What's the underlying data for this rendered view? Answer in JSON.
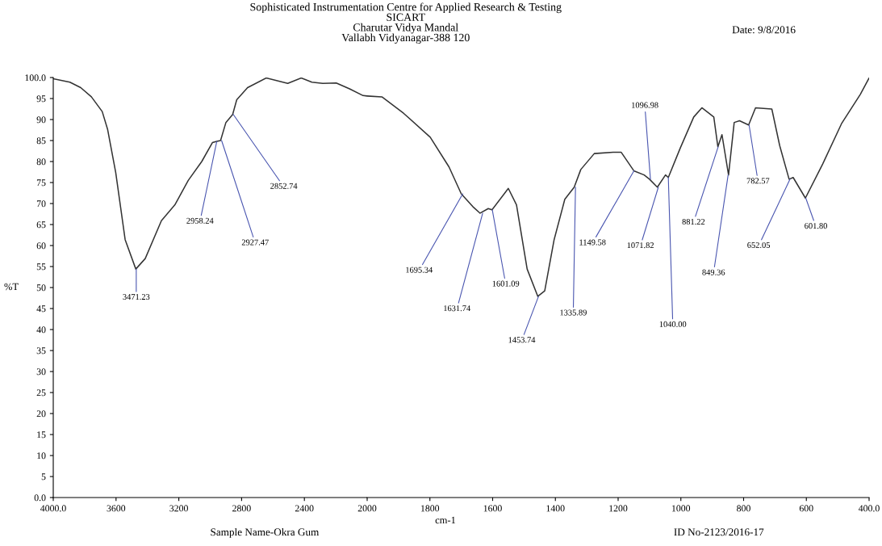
{
  "chart_data": [
    {
      "type": "line",
      "title": "Sophisticated Instrumentation Centre for Applied Research & Testing\nSICART\nCharutar Vidya Mandal\nVallabh Vidyanagar-388 120",
      "ylabel": "%T",
      "grid": false,
      "marker": "none",
      "line_style": "solid",
      "xlim": [
        4000,
        2000
      ],
      "xticks": [
        {
          "value": 4000,
          "label": "4000.0"
        },
        3600,
        3200,
        2800,
        2400
      ],
      "ylim": [
        0,
        100
      ],
      "yticks": [
        {
          "value": 0,
          "label": "0.0"
        },
        5,
        10,
        15,
        20,
        25,
        30,
        35,
        40,
        45,
        50,
        55,
        60,
        65,
        70,
        75,
        80,
        85,
        90,
        95,
        {
          "value": 100,
          "label": "100.0"
        }
      ],
      "series": [
        {
          "color": "#333333",
          "x": [
            4000,
            3894,
            3825,
            3757,
            3688,
            3654,
            3602,
            3542,
            3474,
            3414,
            3311,
            3225,
            3140,
            3054,
            2986,
            2958,
            2934,
            2900,
            2857,
            2831,
            2762,
            2643,
            2506,
            2420,
            2352,
            2283,
            2197,
            2112,
            2026,
            2000
          ],
          "values": [
            99.7,
            98.9,
            97.6,
            95.4,
            91.9,
            87.7,
            77.4,
            61.4,
            54.4,
            56.9,
            65.9,
            69.7,
            75.5,
            80.0,
            84.5,
            84.8,
            85.0,
            89.3,
            91.2,
            94.7,
            97.6,
            99.9,
            98.6,
            99.9,
            98.9,
            98.6,
            98.7,
            97.3,
            95.7,
            95.6
          ]
        }
      ],
      "annotations": [
        {
          "text": "3471.23",
          "x": 3471.23,
          "y": 54.4
        },
        {
          "text": "2958.24",
          "x": 2958.24,
          "y": 84.8
        },
        {
          "text": "2927.47",
          "x": 2927.47,
          "y": 85.0
        },
        {
          "text": "2852.74",
          "x": 2852.74,
          "y": 91.2
        },
        "Sample Name-Okra Gum"
      ]
    },
    {
      "type": "line",
      "xlabel": "cm-1",
      "grid": false,
      "marker": "none",
      "line_style": "solid",
      "tick_labels": "x",
      "xlim": [
        2000,
        400
      ],
      "xticks": [
        2000,
        1800,
        1600,
        1400,
        1200,
        1000,
        800,
        600,
        {
          "value": 400,
          "label": "400.0"
        }
      ],
      "ylim": [
        0,
        100
      ],
      "series": [
        {
          "color": "#333333",
          "x": [
            2000,
            1953,
            1884,
            1799,
            1739,
            1700,
            1661,
            1640,
            1614,
            1602,
            1550,
            1524,
            1490,
            1456,
            1434,
            1404,
            1370,
            1340,
            1319,
            1276,
            1216,
            1190,
            1150,
            1117,
            1100,
            1075,
            1049,
            1040,
            1002,
            959,
            933,
            895,
            882,
            869,
            848,
            830,
            813,
            784,
            762,
            710,
            685,
            655,
            642,
            603,
            548,
            488,
            428,
            400
          ],
          "values": [
            95.6,
            95.4,
            91.5,
            85.8,
            78.7,
            72.3,
            69.1,
            67.7,
            68.8,
            68.5,
            73.6,
            69.7,
            54.4,
            47.9,
            49.2,
            61.4,
            71.0,
            73.9,
            78.1,
            81.9,
            82.2,
            82.2,
            77.8,
            76.8,
            75.8,
            73.9,
            76.8,
            76.2,
            83.2,
            90.6,
            92.8,
            90.6,
            83.5,
            86.4,
            76.8,
            89.3,
            89.7,
            88.7,
            92.8,
            92.5,
            83.8,
            75.8,
            76.2,
            71.3,
            79.4,
            89.0,
            96.0,
            99.9
          ]
        }
      ],
      "annotations": [
        {
          "text": "1695.34",
          "x": 1695.34,
          "y": 72.3
        },
        {
          "text": "1631.74",
          "x": 1631.74,
          "y": 67.7
        },
        {
          "text": "1601.09",
          "x": 1601.09,
          "y": 68.5
        },
        {
          "text": "1453.74",
          "x": 1453.74,
          "y": 47.9
        },
        {
          "text": "1335.89",
          "x": 1335.89,
          "y": 73.9
        },
        {
          "text": "1149.58",
          "x": 1149.58,
          "y": 77.8
        },
        {
          "text": "1096.98",
          "x": 1096.98,
          "y": 75.8
        },
        {
          "text": "1071.82",
          "x": 1071.82,
          "y": 73.9
        },
        {
          "text": "1040.00",
          "x": 1040.0,
          "y": 76.2
        },
        {
          "text": "881.22",
          "x": 881.22,
          "y": 83.5
        },
        {
          "text": "849.36",
          "x": 849.36,
          "y": 76.8
        },
        {
          "text": "782.57",
          "x": 782.57,
          "y": 88.7
        },
        {
          "text": "652.05",
          "x": 652.05,
          "y": 75.8
        },
        {
          "text": "601.80",
          "x": 601.8,
          "y": 71.3
        },
        "Date: 9/8/2016",
        "ID No-2123/2016-17"
      ]
    }
  ]
}
